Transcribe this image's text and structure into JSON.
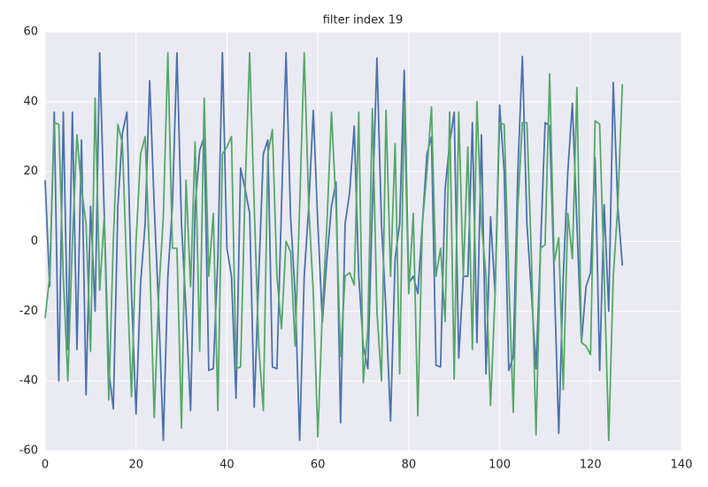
{
  "chart_data": {
    "type": "line",
    "title": "filter index 19",
    "x": [
      0,
      1,
      2,
      3,
      4,
      5,
      6,
      7,
      8,
      9,
      10,
      11,
      12,
      13,
      14,
      15,
      16,
      17,
      18,
      19,
      20,
      21,
      22,
      23,
      24,
      25,
      26,
      27,
      28,
      29,
      30,
      31,
      32,
      33,
      34,
      35,
      36,
      37,
      38,
      39,
      40,
      41,
      42,
      43,
      44,
      45,
      46,
      47,
      48,
      49,
      50,
      51,
      52,
      53,
      54,
      55,
      56,
      57,
      58,
      59,
      60,
      61,
      62,
      63,
      64,
      65,
      66,
      67,
      68,
      69,
      70,
      71,
      72,
      73,
      74,
      75,
      76,
      77,
      78,
      79,
      80,
      81,
      82,
      83,
      84,
      85,
      86,
      87,
      88,
      89,
      90,
      91,
      92,
      93,
      94,
      95,
      96,
      97,
      98,
      99,
      100,
      101,
      102,
      103,
      104,
      105,
      106,
      107,
      108,
      109,
      110,
      111,
      112,
      113,
      114,
      115,
      116,
      117,
      118,
      119,
      120,
      121,
      122,
      123,
      124,
      125,
      126,
      127
    ],
    "series": [
      {
        "color": "#4c72b0",
        "values": [
          17.5,
          -13,
          37,
          -40,
          37,
          -31,
          37,
          -31,
          29,
          -44,
          10,
          -20,
          54,
          8,
          -37,
          -48,
          10,
          31,
          37,
          -15,
          -49.5,
          -12,
          5,
          46,
          10,
          -20,
          -57,
          -10,
          10,
          54,
          5,
          -20,
          -48.5,
          10,
          26,
          30,
          -37,
          -36.5,
          -5,
          54,
          -2,
          -10,
          -45,
          21,
          15,
          8,
          -47.5,
          -10,
          25,
          29,
          -36,
          -36.5,
          10,
          54,
          7,
          -15,
          -57,
          -10,
          10,
          37.5,
          5,
          -23,
          -5,
          10,
          17,
          -52,
          5,
          14,
          33,
          -10,
          -30,
          -36.5,
          10,
          52.5,
          5,
          -20,
          -51.5,
          -5,
          5,
          49,
          -12,
          -10,
          -15,
          5,
          25,
          30,
          -35.5,
          -36,
          15,
          28,
          37,
          -33.5,
          -10,
          -10,
          34,
          -29,
          30.5,
          -38,
          7,
          -15,
          39,
          20,
          -37,
          -33,
          20,
          53,
          5,
          -15,
          -36.5,
          -2,
          34,
          33,
          -10,
          -55,
          -10,
          20,
          39.5,
          5,
          -29,
          -13,
          -9,
          24,
          -37,
          10.5,
          -20,
          45.5,
          10,
          -7
        ]
      },
      {
        "color": "#55a868",
        "values": [
          -22,
          -10,
          34,
          33.5,
          -10,
          -40,
          0,
          30.5,
          15,
          5,
          -31.5,
          41,
          -14,
          7,
          -45.5,
          0,
          33.5,
          28,
          -10,
          -44.5,
          0,
          25,
          30,
          -5,
          -50.5,
          -15,
          7,
          54,
          -2,
          -2,
          -53.5,
          17.5,
          -13,
          28.5,
          -31.5,
          41,
          -10,
          8,
          -48.5,
          25,
          27,
          30,
          -36.5,
          -36,
          15,
          54,
          10,
          -30,
          -48.5,
          25,
          32,
          -10,
          -25,
          0,
          -3,
          -30,
          10,
          54,
          10,
          -15,
          -56,
          -20,
          5,
          37,
          10,
          -33,
          -10,
          -9,
          -12.5,
          37,
          -40.5,
          -25,
          38,
          -20,
          -40,
          37.5,
          -10,
          28,
          -38,
          40,
          -15,
          8,
          -50,
          5,
          20,
          38.5,
          -10,
          -2,
          -23,
          37,
          -39.5,
          37,
          -10,
          27,
          -31,
          40,
          5,
          -10,
          -47,
          -15,
          34,
          33.5,
          -10,
          -49,
          10,
          34,
          34,
          -5,
          -55.5,
          -2,
          -1,
          48,
          -6,
          1,
          -42.5,
          8,
          -5,
          44,
          -29,
          -30,
          -32.5,
          34.5,
          33.5,
          -10,
          -57,
          -10,
          10,
          45
        ]
      }
    ],
    "xlim": [
      0,
      140
    ],
    "xticks": [
      0,
      20,
      40,
      60,
      80,
      100,
      120,
      140
    ],
    "ylim": [
      -60,
      60
    ],
    "yticks": [
      -60,
      -40,
      -20,
      0,
      20,
      40,
      60
    ],
    "grid": true
  }
}
